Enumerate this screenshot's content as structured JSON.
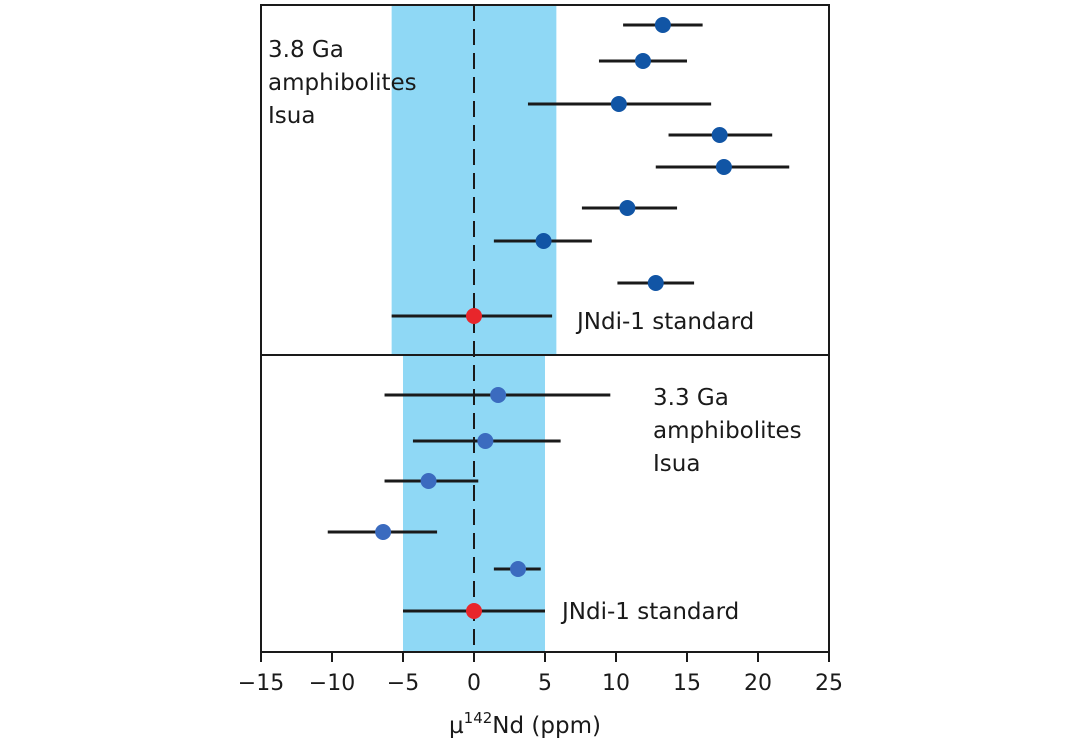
{
  "chart_data": {
    "type": "scatter",
    "subtype": "error-bar dot plot (two stacked panels)",
    "xlabel": {
      "prefix": "µ",
      "superscript": "142",
      "main": "Nd (ppm)"
    },
    "xlim": [
      -15,
      25
    ],
    "xticks": [
      -15,
      -10,
      -5,
      0,
      5,
      10,
      15,
      20,
      25
    ],
    "xtick_labels": [
      "−15",
      "−10",
      "−5",
      "0",
      "5",
      "10",
      "15",
      "20",
      "25"
    ],
    "zero_reference_line": "dashed vertical line at x = 0",
    "grid": false,
    "panels": [
      {
        "label_lines": [
          "3.8 Ga",
          "amphibolites",
          "Isua"
        ],
        "label_position": "top-left",
        "shaded_band": {
          "from": -5.8,
          "to": 5.8,
          "color": "#8fd8f5"
        },
        "series": [
          {
            "marker_color": "#1155a5",
            "points": [
              {
                "x": 13.3,
                "xerr_low": 10.5,
                "xerr_high": 16.1
              },
              {
                "x": 11.9,
                "xerr_low": 8.8,
                "xerr_high": 15.0
              },
              {
                "x": 10.2,
                "xerr_low": 3.8,
                "xerr_high": 16.7
              },
              {
                "x": 17.3,
                "xerr_low": 13.7,
                "xerr_high": 21.0
              },
              {
                "x": 17.6,
                "xerr_low": 12.8,
                "xerr_high": 22.2
              },
              {
                "x": 10.8,
                "xerr_low": 7.6,
                "xerr_high": 14.3
              },
              {
                "x": 4.9,
                "xerr_low": 1.4,
                "xerr_high": 8.3
              },
              {
                "x": 12.8,
                "xerr_low": 10.1,
                "xerr_high": 15.5
              }
            ]
          }
        ],
        "standard": {
          "label": "JNdi-1 standard",
          "marker_color": "#e8262b",
          "x": 0,
          "xerr_low": -5.8,
          "xerr_high": 5.5
        }
      },
      {
        "label_lines": [
          "3.3 Ga",
          "amphibolites",
          "Isua"
        ],
        "label_position": "top-right",
        "shaded_band": {
          "from": -5.0,
          "to": 5.0,
          "color": "#8fd8f5"
        },
        "series": [
          {
            "marker_color": "#3b6bbf",
            "points": [
              {
                "x": 1.7,
                "xerr_low": -6.3,
                "xerr_high": 9.6
              },
              {
                "x": 0.8,
                "xerr_low": -4.3,
                "xerr_high": 6.1
              },
              {
                "x": -3.2,
                "xerr_low": -6.3,
                "xerr_high": 0.3
              },
              {
                "x": -6.4,
                "xerr_low": -10.3,
                "xerr_high": -2.6
              },
              {
                "x": 3.1,
                "xerr_low": 1.4,
                "xerr_high": 4.7
              }
            ]
          }
        ],
        "standard": {
          "label": "JNdi-1 standard",
          "marker_color": "#e8262b",
          "x": 0,
          "xerr_low": -5.0,
          "xerr_high": 5.0
        }
      }
    ]
  }
}
